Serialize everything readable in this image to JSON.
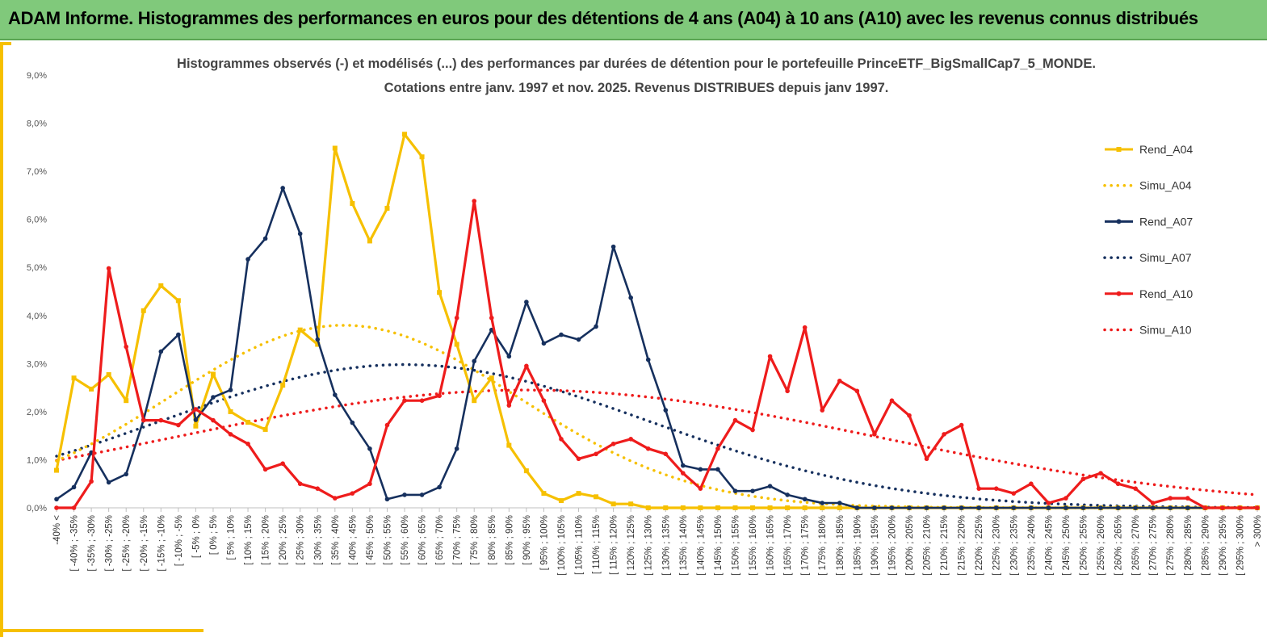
{
  "header": {
    "banner": "ADAM Informe. Histogrammes des performances en euros pour des détentions de 4 ans (A04) à 10 ans (A10) avec les revenus connus distribués"
  },
  "colors": {
    "banner_bg": "#80c97b",
    "frame_accent": "#f6c000",
    "A04": "#f6c000",
    "A07": "#16305e",
    "A10": "#ee1c1c"
  },
  "chart_data": {
    "type": "line",
    "title_line1": "Histogrammes observés (-) et modélisés (...) des performances par durées de détention pour le portefeuille PrinceETF_BigSmallCap7_5_MONDE.",
    "title_line2": "Cotations entre janv. 1997 et nov. 2025. Revenus DISTRIBUES depuis janv 1997.",
    "ylim": [
      0,
      9
    ],
    "yticks": [
      "0,0%",
      "1,0%",
      "2,0%",
      "3,0%",
      "4,0%",
      "5,0%",
      "6,0%",
      "7,0%",
      "8,0%",
      "9,0%"
    ],
    "grid": false,
    "legend_position": "right",
    "categories": [
      "-40% <",
      "[ -40% ; -35%",
      "[ -35% ; -30%",
      "[ -30% ; -25%",
      "[ -25% ; -20%",
      "[ -20% ; -15%",
      "[ -15% ; -10%",
      "[ -10% ; -5%",
      "[ -5% ; 0%",
      "[ 0% ; 5%",
      "[ 5% ; 10%",
      "[ 10% ; 15%",
      "[ 15% ; 20%",
      "[ 20% ; 25%",
      "[ 25% ; 30%",
      "[ 30% ; 35%",
      "[ 35% ; 40%",
      "[ 40% ; 45%",
      "[ 45% ; 50%",
      "[ 50% ; 55%",
      "[ 55% ; 60%",
      "[ 60% ; 65%",
      "[ 65% ; 70%",
      "[ 70% ; 75%",
      "[ 75% ; 80%",
      "[ 80% ; 85%",
      "[ 85% ; 90%",
      "[ 90% ; 95%",
      "[ 95% ; 100%",
      "[ 100% ; 105%",
      "[ 105% ; 110%",
      "[ 110% ; 115%",
      "[ 115% ; 120%",
      "[ 120% ; 125%",
      "[ 125% ; 130%",
      "[ 130% ; 135%",
      "[ 135% ; 140%",
      "[ 140% ; 145%",
      "[ 145% ; 150%",
      "[ 150% ; 155%",
      "[ 155% ; 160%",
      "[ 160% ; 165%",
      "[ 165% ; 170%",
      "[ 170% ; 175%",
      "[ 175% ; 180%",
      "[ 180% ; 185%",
      "[ 185% ; 190%",
      "[ 190% ; 195%",
      "[ 195% ; 200%",
      "[ 200% ; 205%",
      "[ 205% ; 210%",
      "[ 210% ; 215%",
      "[ 215% ; 220%",
      "[ 220% ; 225%",
      "[ 225% ; 230%",
      "[ 230% ; 235%",
      "[ 235% ; 240%",
      "[ 240% ; 245%",
      "[ 245% ; 250%",
      "[ 250% ; 255%",
      "[ 255% ; 260%",
      "[ 260% ; 265%",
      "[ 265% ; 270%",
      "[ 270% ; 275%",
      "[ 275% ; 280%",
      "[ 280% ; 285%",
      "[ 285% ; 290%",
      "[ 290% ; 295%",
      "[ 295% ; 300%",
      "> 300%"
    ],
    "series": [
      {
        "name": "Rend_A04",
        "style": "solid",
        "marker": "square",
        "color": "#f6c000",
        "values": [
          0.78,
          2.7,
          2.47,
          2.77,
          2.23,
          4.1,
          4.62,
          4.31,
          1.7,
          2.78,
          2.0,
          1.78,
          1.63,
          2.55,
          3.7,
          3.4,
          7.48,
          6.33,
          5.55,
          6.23,
          7.77,
          7.3,
          4.48,
          3.4,
          2.23,
          2.7,
          1.3,
          0.77,
          0.3,
          0.15,
          0.3,
          0.23,
          0.08,
          0.08,
          0.0,
          0.0,
          0.0,
          0.0,
          0.0,
          0.0,
          0.0,
          0.0,
          0.0,
          0.0,
          0.0,
          0.0,
          0.0,
          0.0,
          0.0,
          0.0,
          0.0,
          0.0,
          0.0,
          0.0,
          0.0,
          0.0,
          0.0,
          0.0,
          0.0,
          0.0,
          0.0,
          0.0,
          0.0,
          0.0,
          0.0,
          0.0,
          0.0,
          0.0,
          0.0,
          0.0
        ]
      },
      {
        "name": "Simu_A04",
        "style": "dotted",
        "color": "#f6c000",
        "mean": 40,
        "sd": 50,
        "scale": 3.8
      },
      {
        "name": "Rend_A07",
        "style": "solid",
        "marker": "circle",
        "color": "#16305e",
        "values": [
          0.18,
          0.43,
          1.15,
          0.53,
          0.7,
          1.83,
          3.25,
          3.6,
          1.83,
          2.3,
          2.45,
          5.17,
          5.6,
          6.65,
          5.7,
          3.5,
          2.35,
          1.77,
          1.23,
          0.18,
          0.27,
          0.27,
          0.43,
          1.23,
          3.05,
          3.7,
          3.15,
          4.28,
          3.42,
          3.6,
          3.5,
          3.77,
          5.43,
          4.37,
          3.08,
          2.03,
          0.88,
          0.8,
          0.8,
          0.35,
          0.35,
          0.45,
          0.27,
          0.18,
          0.1,
          0.1,
          0.0,
          0.0,
          0.0,
          0.0,
          0.0,
          0.0,
          0.0,
          0.0,
          0.0,
          0.0,
          0.0,
          0.0,
          0.0,
          0.0,
          0.0,
          0.0,
          0.0,
          0.0,
          0.0,
          0.0,
          0.0,
          0.0,
          0.0,
          0.0
        ]
      },
      {
        "name": "Simu_A07",
        "style": "dotted",
        "color": "#16305e",
        "mean": 57.5,
        "sd": 70,
        "scale": 2.98
      },
      {
        "name": "Rend_A10",
        "style": "solid",
        "marker": "circle",
        "color": "#ee1c1c",
        "values": [
          0.0,
          0.0,
          0.55,
          4.98,
          3.35,
          1.82,
          1.82,
          1.72,
          2.05,
          1.82,
          1.53,
          1.33,
          0.8,
          0.92,
          0.5,
          0.4,
          0.2,
          0.3,
          0.5,
          1.72,
          2.23,
          2.23,
          2.33,
          3.95,
          6.38,
          3.95,
          2.13,
          2.95,
          2.23,
          1.43,
          1.02,
          1.12,
          1.33,
          1.43,
          1.23,
          1.12,
          0.72,
          0.4,
          1.23,
          1.82,
          1.62,
          3.15,
          2.43,
          3.75,
          2.03,
          2.64,
          2.43,
          1.53,
          2.23,
          1.92,
          1.02,
          1.53,
          1.72,
          0.4,
          0.4,
          0.3,
          0.5,
          0.1,
          0.2,
          0.6,
          0.72,
          0.5,
          0.4,
          0.1,
          0.2,
          0.2,
          0.0,
          0.0,
          0.0,
          0.0
        ]
      },
      {
        "name": "Simu_A10",
        "style": "dotted",
        "color": "#ee1c1c",
        "mean": 92.5,
        "sd": 100,
        "scale": 2.45
      }
    ]
  }
}
